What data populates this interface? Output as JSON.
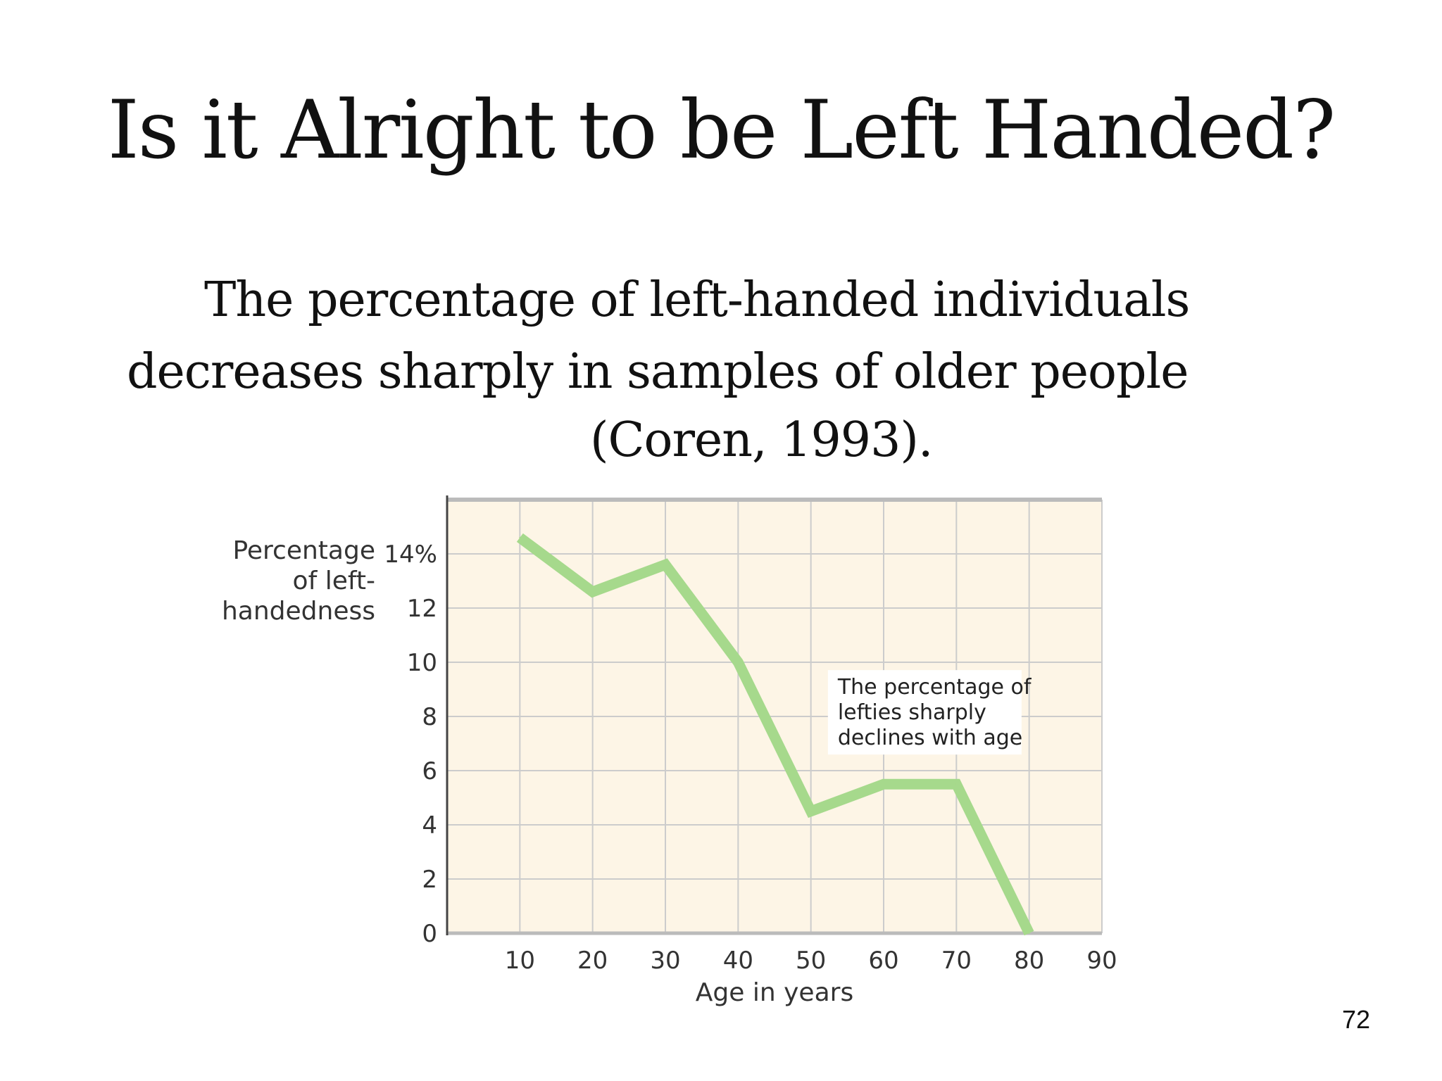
{
  "slide": {
    "title": "Is it Alright to be Left Handed?",
    "subtitle_lines": [
      "The percentage of left-handed individuals",
      "decreases sharply in samples of older people",
      "(Coren, 1993)."
    ],
    "page_number": "72"
  },
  "chart_data": {
    "type": "line",
    "ylabel_lines": [
      "Percentage",
      "of left-",
      "handedness"
    ],
    "xlabel": "Age in years",
    "x": [
      10,
      20,
      30,
      40,
      50,
      60,
      70,
      80
    ],
    "series": [
      {
        "values": [
          14.6,
          12.6,
          13.6,
          10.0,
          4.5,
          5.5,
          5.5,
          0
        ]
      }
    ],
    "xlim": [
      0,
      90
    ],
    "ylim": [
      0,
      16
    ],
    "xticks": [
      10,
      20,
      30,
      40,
      50,
      60,
      70,
      80,
      90
    ],
    "xtick_labels": [
      "10",
      "20",
      "30",
      "40",
      "50",
      "60",
      "70",
      "80",
      "90"
    ],
    "yticks": [
      0,
      2,
      4,
      6,
      8,
      10,
      12,
      14
    ],
    "ytick_labels": [
      "0",
      "2",
      "4",
      "6",
      "8",
      "10",
      "12",
      "14%"
    ],
    "annotation_lines": [
      "The percentage of",
      "lefties sharply",
      "declines with age"
    ],
    "grid": true,
    "colors": {
      "line": "#a6d98c",
      "plot_bg": "#fdf5e6",
      "grid": "#cccccc",
      "axis": "#444444"
    }
  }
}
